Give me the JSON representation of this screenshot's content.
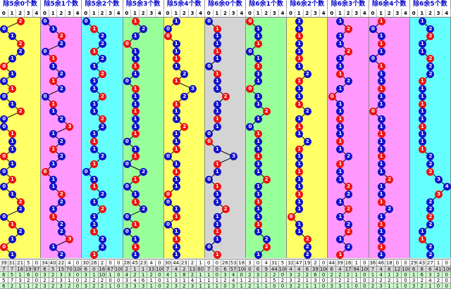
{
  "colors": {
    "section_bg": [
      "#ffff66",
      "#ff99ff",
      "#66ffff",
      "#99ff99",
      "#ffff66",
      "#d4d4d4",
      "#99ff99",
      "#ffff66",
      "#ff99ff",
      "#ff99ff",
      "#66ffff"
    ],
    "ball_red": "#ee1111",
    "ball_blue": "#1111cc",
    "line": "#000000",
    "stat_rows": [
      "#ffffff",
      "#d9d9d9",
      "#ccffcc",
      "#ffffff",
      "#ccffcc"
    ]
  },
  "sections": [
    {
      "title": "除5余0个数",
      "max": 4,
      "digits": [
        "0",
        "1",
        "2",
        "3",
        "4"
      ],
      "balls": [
        2,
        0,
        1,
        2,
        2,
        1,
        0,
        1,
        0,
        1,
        0,
        1,
        2,
        0,
        0,
        1,
        1,
        1,
        0,
        1,
        0,
        1,
        0,
        1,
        2,
        2,
        0,
        1,
        2,
        1,
        0,
        1
      ],
      "stats": [
        "39",
        "31",
        "21",
        "5",
        "0",
        "7",
        "7",
        "18",
        "19",
        "97",
        "6",
        "5",
        "1",
        "6",
        "0",
        "5",
        "7",
        "3",
        "2",
        "0",
        "6",
        "2",
        "1",
        "1",
        "2"
      ]
    },
    {
      "title": "除5余1个数",
      "max": 4,
      "digits": [
        "0",
        "1",
        "2",
        "3",
        "4"
      ],
      "balls": [
        0,
        1,
        2,
        2,
        0,
        1,
        1,
        2,
        1,
        2,
        0,
        1,
        1,
        2,
        3,
        1,
        2,
        1,
        2,
        1,
        0,
        1,
        1,
        2,
        2,
        1,
        1,
        2,
        2,
        3,
        1,
        2
      ],
      "stats": [
        "34",
        "40",
        "22",
        "4",
        "0",
        "6",
        "5",
        "15",
        "70",
        "100",
        "3",
        "2",
        "3",
        "3",
        "0",
        "2",
        "2",
        "3",
        "1",
        "0",
        "3",
        "2",
        "3",
        "2",
        "0"
      ]
    },
    {
      "title": "除5余2个数",
      "max": 4,
      "digits": [
        "0",
        "1",
        "2",
        "3",
        "4"
      ],
      "balls": [
        0,
        1,
        2,
        2,
        1,
        2,
        1,
        2,
        1,
        1,
        2,
        1,
        1,
        2,
        2,
        1,
        1,
        1,
        2,
        1,
        0,
        1,
        1,
        2,
        1,
        2,
        1,
        1,
        1,
        2,
        2,
        1
      ],
      "stats": [
        "30",
        "26",
        "2",
        "0",
        "0",
        "6",
        "0",
        "16",
        "67",
        "100",
        "3",
        "1",
        "10",
        "1",
        "0",
        "2",
        "2",
        "2",
        "0",
        "0",
        "3",
        "2",
        "2",
        "1",
        "0"
      ]
    },
    {
      "title": "除5余3个数",
      "max": 4,
      "digits": [
        "0",
        "1",
        "2",
        "3",
        "4"
      ],
      "balls": [
        1,
        2,
        1,
        0,
        1,
        1,
        1,
        1,
        0,
        1,
        1,
        1,
        1,
        1,
        1,
        1,
        0,
        1,
        1,
        0,
        2,
        1,
        0,
        1,
        1,
        2,
        0,
        1,
        0,
        1,
        1,
        1
      ],
      "stats": [
        "28",
        "45",
        "23",
        "4",
        "0",
        "2",
        "1",
        "1",
        "33",
        "100",
        "4",
        "2",
        "1",
        "2",
        "0",
        "3",
        "4",
        "6",
        "1",
        "0",
        "3",
        "3",
        "3",
        "1",
        "0"
      ]
    },
    {
      "title": "除5余4个数",
      "max": 4,
      "digits": [
        "0",
        "1",
        "2",
        "3",
        "4"
      ],
      "balls": [
        1,
        0,
        0,
        1,
        1,
        1,
        1,
        2,
        1,
        3,
        2,
        1,
        1,
        1,
        2,
        1,
        1,
        1,
        0,
        1,
        1,
        1,
        1,
        0,
        0,
        1,
        1,
        0,
        1,
        1,
        1,
        1
      ],
      "stats": [
        "30",
        "44",
        "23",
        "2",
        "1",
        "7",
        "4",
        "2",
        "13",
        "60",
        "4",
        "1",
        "8",
        "2",
        "1",
        "1",
        "3",
        "1",
        "4",
        "1",
        "2",
        "3",
        "2",
        "3",
        "1"
      ]
    },
    {
      "title": "除6余0个数",
      "max": 4,
      "digits": [
        "0",
        "1",
        "2",
        "3",
        "4"
      ],
      "balls": [
        0,
        1,
        1,
        1,
        1,
        1,
        0,
        1,
        1,
        1,
        2,
        1,
        1,
        1,
        1,
        0,
        0,
        1,
        3,
        1,
        1,
        0,
        1,
        1,
        1,
        2,
        1,
        1,
        1,
        1,
        0,
        1
      ],
      "stats": [
        "0",
        "0",
        "26",
        "53",
        "18",
        "7",
        "0",
        "6",
        "57",
        "100",
        "1",
        "0",
        "3",
        "4",
        "0",
        "1",
        "1",
        "2",
        "4",
        "1",
        "1",
        "1",
        "0",
        "3",
        "1"
      ]
    },
    {
      "title": "除6余1个数",
      "max": 4,
      "digits": [
        "0",
        "1",
        "2",
        "3",
        "4"
      ],
      "balls": [
        0,
        1,
        1,
        1,
        0,
        1,
        1,
        1,
        1,
        0,
        1,
        1,
        2,
        1,
        0,
        1,
        1,
        1,
        1,
        1,
        1,
        2,
        1,
        1,
        1,
        1,
        1,
        1,
        1,
        2,
        2,
        1
      ],
      "stats": [
        "3",
        "0",
        "4",
        "31",
        "5",
        "0",
        "6",
        "9",
        "44",
        "100",
        "2",
        "3",
        "2",
        "2",
        "0",
        "2",
        "1",
        "1",
        "5",
        "2",
        "2",
        "1",
        "1",
        "0",
        "0"
      ]
    },
    {
      "title": "除6余2个数",
      "max": 4,
      "digits": [
        "0",
        "1",
        "2",
        "3",
        "4"
      ],
      "balls": [
        1,
        1,
        1,
        1,
        1,
        1,
        1,
        2,
        1,
        1,
        1,
        1,
        2,
        1,
        1,
        1,
        2,
        1,
        1,
        1,
        1,
        1,
        1,
        1,
        1,
        1,
        0,
        1,
        1,
        2,
        2,
        2
      ],
      "stats": [
        "32",
        "47",
        "19",
        "2",
        "0",
        "4",
        "4",
        "6",
        "39",
        "100",
        "3",
        "2",
        "2",
        "6",
        "0",
        "3",
        "2",
        "1",
        "3",
        "0",
        "3",
        "2",
        "1",
        "1",
        "0"
      ]
    },
    {
      "title": "除6余3个数",
      "max": 4,
      "digits": [
        "0",
        "1",
        "2",
        "3",
        "4"
      ],
      "balls": [
        1,
        2,
        1,
        1,
        2,
        1,
        1,
        1,
        2,
        1,
        0,
        1,
        1,
        1,
        1,
        1,
        1,
        1,
        2,
        1,
        1,
        1,
        2,
        2,
        1,
        2,
        1,
        2,
        2,
        1,
        2,
        1
      ],
      "stats": [
        "44",
        "39",
        "16",
        "1",
        "0",
        "6",
        "4",
        "17",
        "94",
        "100",
        "2",
        "2",
        "2",
        "1",
        "0",
        "3",
        "2",
        "2",
        "1",
        "0",
        "3",
        "3",
        "1",
        "0",
        "0"
      ]
    },
    {
      "title": "除6余4个数",
      "max": 4,
      "digits": [
        "0",
        "1",
        "2",
        "3",
        "4"
      ],
      "balls": [
        1,
        0,
        1,
        1,
        1,
        0,
        1,
        1,
        1,
        1,
        1,
        1,
        0,
        1,
        1,
        1,
        1,
        1,
        1,
        1,
        1,
        2,
        1,
        1,
        1,
        2,
        1,
        1,
        1,
        1,
        1,
        1
      ],
      "stats": [
        "36",
        "46",
        "18",
        "0",
        "0",
        "7",
        "4",
        "8",
        "12",
        "100",
        "1",
        "4",
        "1",
        "2",
        "0",
        "3",
        "2",
        "2",
        "1",
        "0",
        "2",
        "3",
        "1",
        "1",
        "0"
      ]
    },
    {
      "title": "除6余5个数",
      "max": 4,
      "digits": [
        "0",
        "1",
        "2",
        "3",
        "4"
      ],
      "balls": [
        1,
        2,
        2,
        1,
        1,
        2,
        2,
        2,
        1,
        1,
        1,
        1,
        1,
        1,
        1,
        1,
        1,
        1,
        2,
        2,
        2,
        3,
        4,
        3,
        2,
        2,
        2,
        2,
        1,
        1,
        2,
        2
      ],
      "stats": [
        "29",
        "43",
        "27",
        "1",
        "0",
        "6",
        "8",
        "6",
        "41",
        "100",
        "1",
        "6",
        "3",
        "2",
        "0",
        "3",
        "2",
        "4",
        "2",
        "0",
        "3",
        "2",
        "1",
        "0",
        "0"
      ]
    }
  ]
}
